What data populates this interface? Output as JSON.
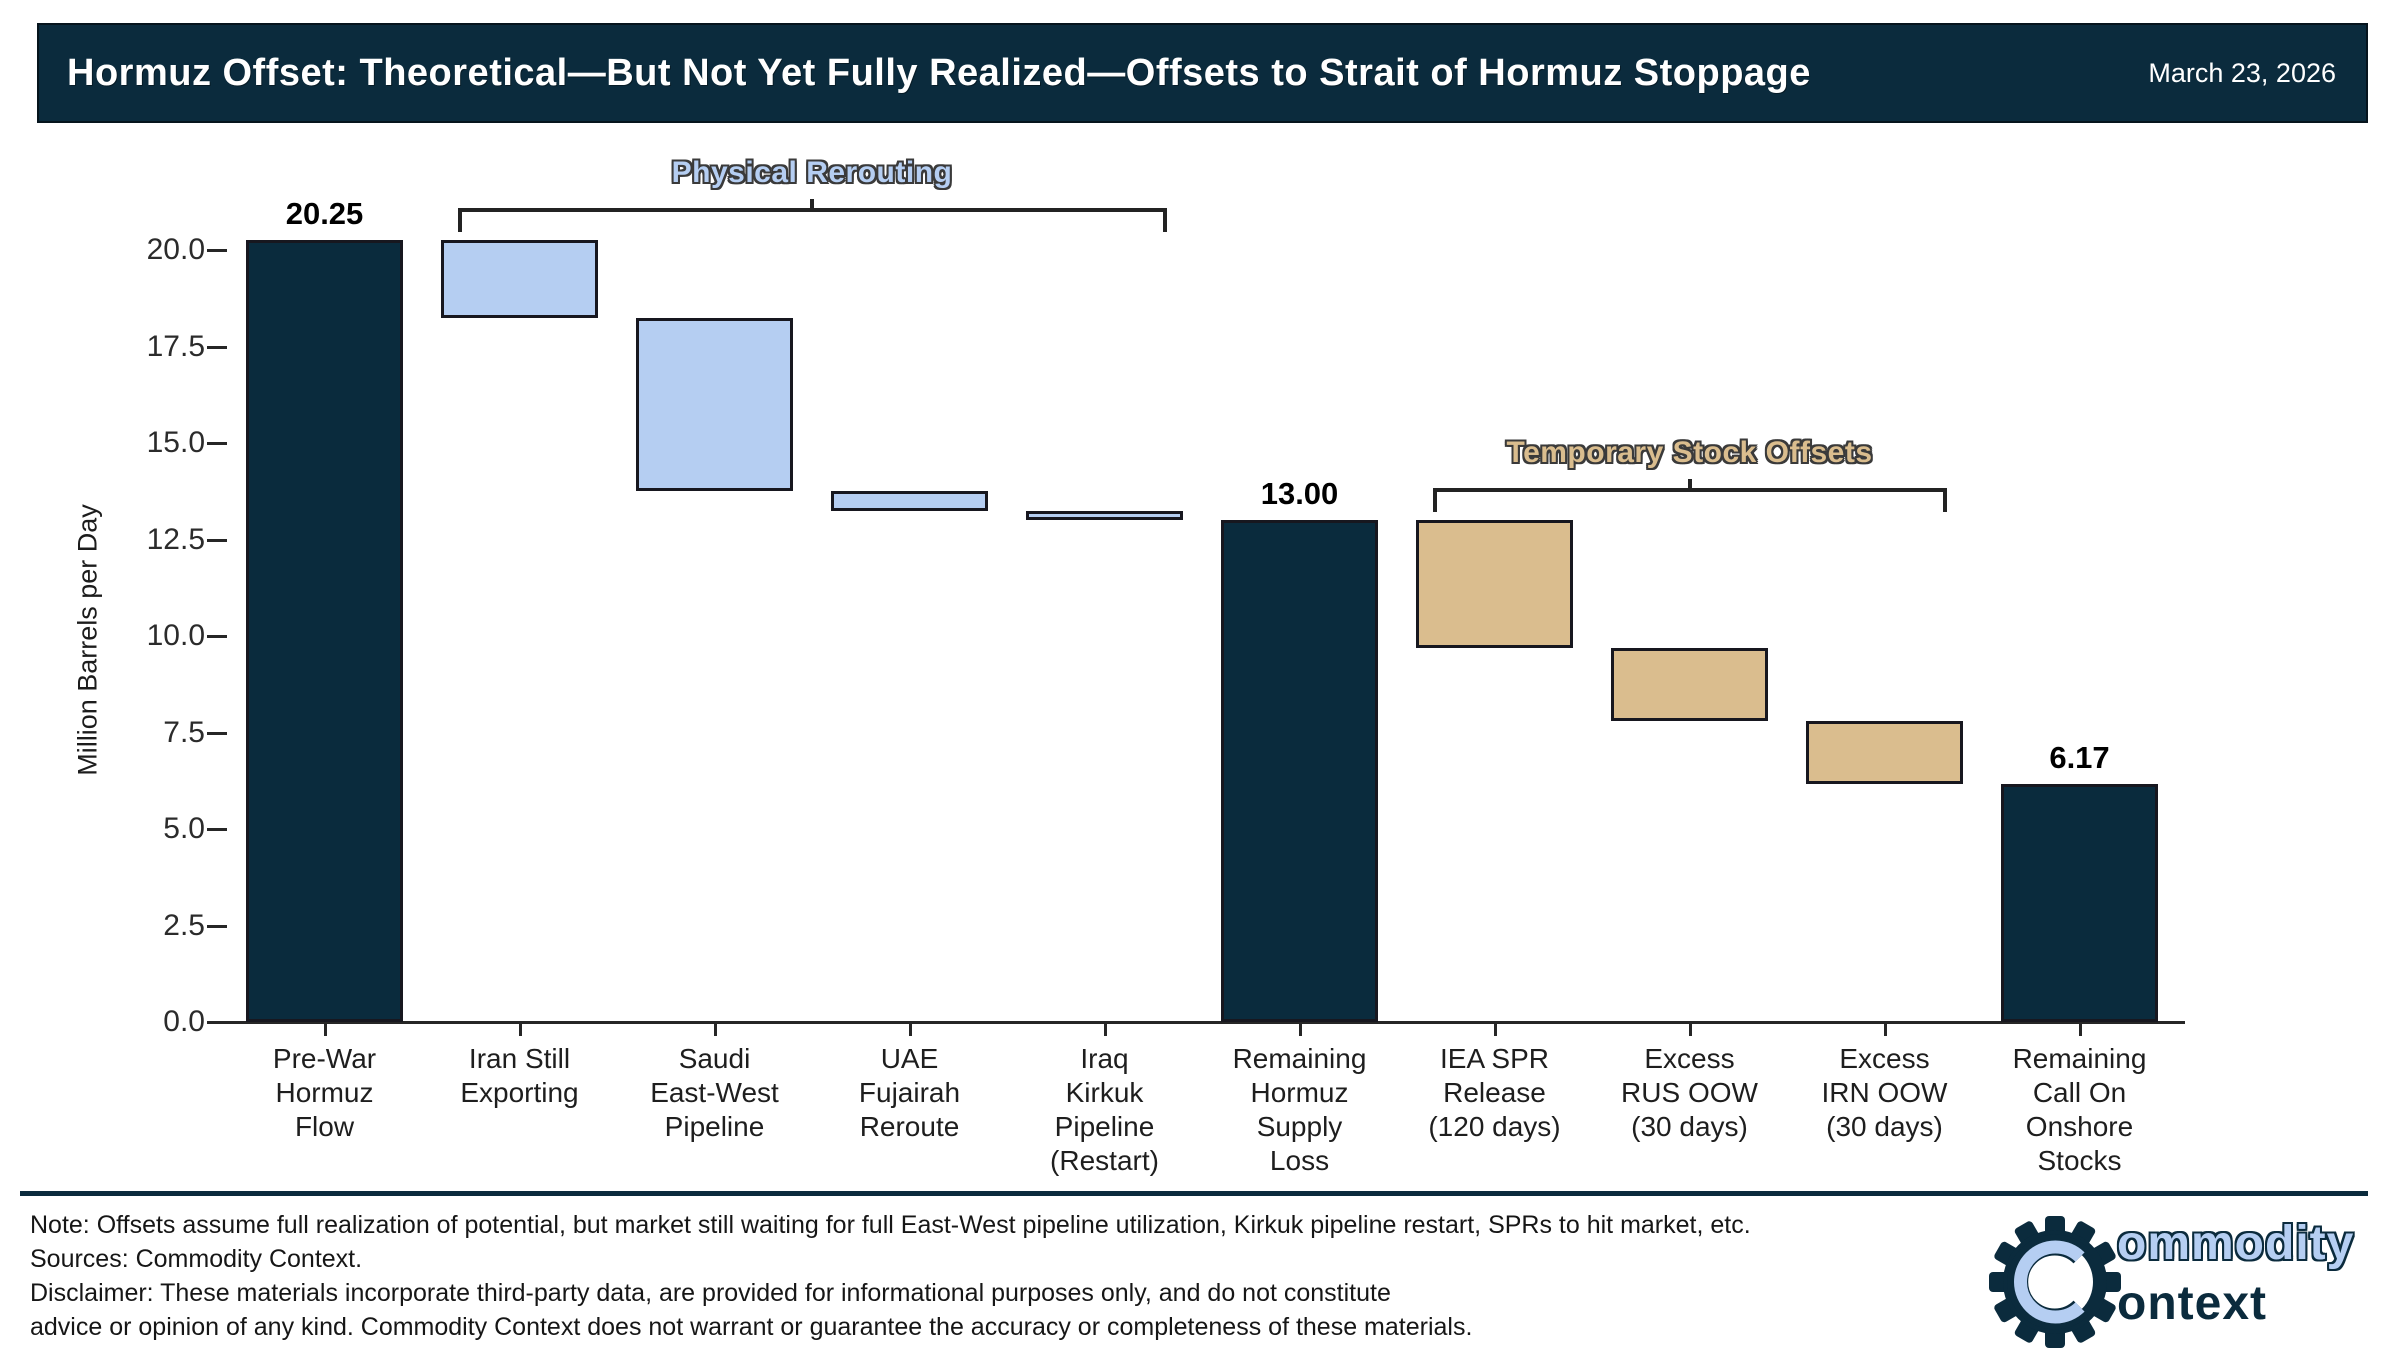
{
  "header": {
    "title": "Hormuz Offset: Theoretical—But Not Yet Fully Realized—Offsets to Strait of Hormuz Stoppage",
    "date": "March 23, 2026"
  },
  "chart_data": {
    "type": "bar",
    "subtype": "waterfall",
    "title": "Hormuz Offset: Theoretical—But Not Yet Fully Realized—Offsets to Strait of Hormuz Stoppage",
    "ylabel": "Million Barrels per Day",
    "ylim": [
      0,
      21.1
    ],
    "yticks": [
      0,
      2.5,
      5,
      7.5,
      10,
      12.5,
      15,
      17.5,
      20
    ],
    "grid": false,
    "categories": [
      "Pre-War\nHormuz\nFlow",
      "Iran Still\nExporting",
      "Saudi\nEast-West\nPipeline",
      "UAE\nFujairah\nReroute",
      "Iraq\nKirkuk\nPipeline\n(Restart)",
      "Remaining\nHormuz\nSupply\nLoss",
      "IEA SPR\nRelease\n(120 days)",
      "Excess\nRUS OOW\n(30 days)",
      "Excess\nIRN OOW\n(30 days)",
      "Remaining\nCall On\nOnshore\nStocks"
    ],
    "bars": [
      {
        "name": "Pre-War Hormuz Flow",
        "from": 0,
        "to": 20.25,
        "group": "total",
        "value_label": "20.25"
      },
      {
        "name": "Iran Still Exporting",
        "from": 18.25,
        "to": 20.25,
        "group": "reroute",
        "value_label": ""
      },
      {
        "name": "Saudi East-West Pipeline",
        "from": 13.75,
        "to": 18.25,
        "group": "reroute",
        "value_label": ""
      },
      {
        "name": "UAE Fujairah Reroute",
        "from": 13.25,
        "to": 13.75,
        "group": "reroute",
        "value_label": ""
      },
      {
        "name": "Iraq Kirkuk Pipeline (Restart)",
        "from": 13.0,
        "to": 13.25,
        "group": "reroute",
        "value_label": ""
      },
      {
        "name": "Remaining Hormuz Supply Loss",
        "from": 0,
        "to": 13.0,
        "group": "total",
        "value_label": "13.00"
      },
      {
        "name": "IEA SPR Release (120 days)",
        "from": 9.7,
        "to": 13.0,
        "group": "stock",
        "value_label": ""
      },
      {
        "name": "Excess RUS OOW (30 days)",
        "from": 7.8,
        "to": 9.7,
        "group": "stock",
        "value_label": ""
      },
      {
        "name": "Excess IRN OOW (30 days)",
        "from": 6.17,
        "to": 7.8,
        "group": "stock",
        "value_label": ""
      },
      {
        "name": "Remaining Call On Onshore Stocks",
        "from": 0,
        "to": 6.17,
        "group": "total",
        "value_label": "6.17"
      }
    ],
    "colors": {
      "total": "#0a2b3d",
      "reroute": "#b5cef2",
      "stock": "#dabd8e",
      "edge": "#17171f"
    },
    "annotations": [
      {
        "text": "Physical Rerouting",
        "color": "#b5cef2",
        "from_bar": 1,
        "to_bar": 4
      },
      {
        "text": "Temporary Stock Offsets",
        "color": "#dabd8e",
        "from_bar": 6,
        "to_bar": 8
      }
    ],
    "legend": "none"
  },
  "footer": {
    "notes": [
      "Note: Offsets assume full realization of potential, but market still waiting for full East-West pipeline utilization, Kirkuk pipeline restart, SPRs to hit market, etc.",
      "Sources: Commodity Context.",
      "Disclaimer: These materials incorporate third-party data, are provided for informational purposes only, and do not constitute",
      "advice or opinion of any kind. Commodity Context does not warrant or guarantee the accuracy or completeness of these materials."
    ],
    "logo": {
      "word1": "ommodity",
      "word2": "ontext",
      "gear_color": "#0b2b3d",
      "c_color": "#b5cef2"
    }
  }
}
